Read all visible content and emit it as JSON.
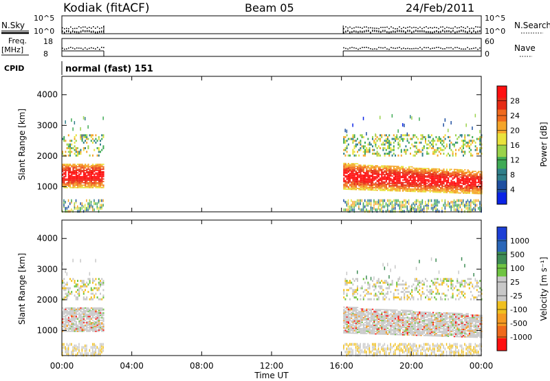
{
  "header": {
    "station": "Kodiak (fitACF)",
    "beam": "Beam 05",
    "date": "24/Feb/2011"
  },
  "top_panels": {
    "nsky_label": "N.Sky",
    "nsearch_label": "N.Search",
    "nsky_ticks": [
      "10^5",
      "10^0"
    ],
    "nsearch_ticks": [
      "10^5",
      "10^0"
    ],
    "freq_label": "Freq.",
    "freq_unit": "[MHz]",
    "freq_ticks": [
      "18",
      "8"
    ],
    "nave_label": "Nave",
    "nave_ticks": [
      "60",
      "0"
    ],
    "cpid_label": "CPID",
    "cpid_text": "normal (fast) 151"
  },
  "chart_data": [
    {
      "type": "heatmap",
      "title": "",
      "xlabel": "Time UT",
      "ylabel": "Slant Range [km]",
      "colorbar_label": "Power [dB]",
      "x_ticks": [
        "00:00",
        "04:00",
        "08:00",
        "12:00",
        "16:00",
        "20:00",
        "00:00"
      ],
      "y_ticks": [
        1000,
        2000,
        3000,
        4000
      ],
      "xlim": [
        0,
        24
      ],
      "ylim": [
        180,
        4600
      ],
      "colorbar_ticks": [
        4,
        8,
        12,
        16,
        20,
        24,
        28
      ],
      "colors": [
        "#0a23e6",
        "#1e4fa0",
        "#2f7f8a",
        "#3faa55",
        "#9ad24a",
        "#e9e23c",
        "#f5a52a",
        "#f06a1e",
        "#e62b14",
        "#ff1010"
      ],
      "data_coverage": [
        {
          "t_start": 0.0,
          "t_end": 2.4,
          "range_start": 180,
          "range_end": 3500
        },
        {
          "t_start": 16.1,
          "t_end": 24.0,
          "range_start": 180,
          "range_end": 3300
        }
      ]
    },
    {
      "type": "heatmap",
      "title": "",
      "xlabel": "Time UT",
      "ylabel": "Slant Range [km]",
      "colorbar_label": "Velocity [m s⁻¹]",
      "x_ticks": [
        "00:00",
        "04:00",
        "08:00",
        "12:00",
        "16:00",
        "20:00",
        "00:00"
      ],
      "y_ticks": [
        1000,
        2000,
        3000,
        4000
      ],
      "xlim": [
        0,
        24
      ],
      "ylim": [
        180,
        4600
      ],
      "colorbar_ticks": [
        1000,
        500,
        100,
        25,
        -25,
        -100,
        -500,
        -1000
      ],
      "colors": [
        "#1c3fd6",
        "#2a66b8",
        "#3e8c55",
        "#6fc442",
        "#c8c8c8",
        "#c8c8c8",
        "#f0c020",
        "#f59a22",
        "#ef6a1c",
        "#ff1010"
      ],
      "data_coverage": [
        {
          "t_start": 0.0,
          "t_end": 2.4,
          "range_start": 180,
          "range_end": 3500
        },
        {
          "t_start": 16.1,
          "t_end": 24.0,
          "range_start": 180,
          "range_end": 3300
        }
      ]
    }
  ]
}
